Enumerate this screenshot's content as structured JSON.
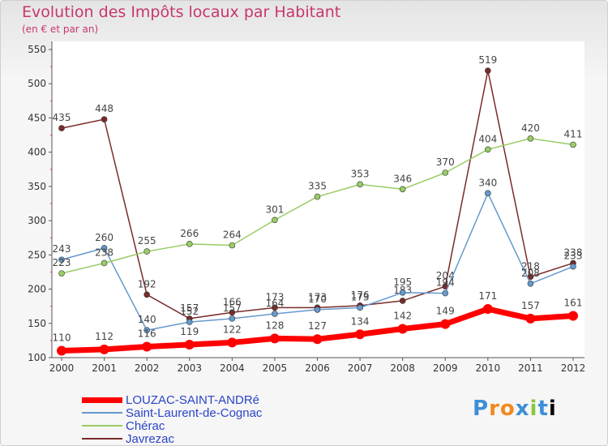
{
  "title": "Evolution des Impôts locaux par Habitant",
  "subtitle": "(en € et par an)",
  "logo_text": "Proxiti",
  "chart_data": {
    "type": "line",
    "x": [
      2000,
      2001,
      2002,
      2003,
      2004,
      2005,
      2006,
      2007,
      2008,
      2009,
      2010,
      2011,
      2012
    ],
    "ylim": [
      100,
      550
    ],
    "yticks": [
      100,
      150,
      200,
      250,
      300,
      350,
      400,
      450,
      500,
      550
    ],
    "grid": false,
    "legend_position": "bottom-left",
    "series": [
      {
        "name": "LOUZAC-SAINT-ANDRé",
        "color": "#ff0000",
        "values": [
          110,
          112,
          116,
          119,
          122,
          128,
          127,
          134,
          142,
          149,
          171,
          157,
          161
        ],
        "labels": [
          "110",
          "112",
          "116",
          "119",
          "122",
          "128",
          "127",
          "134",
          "142",
          "149",
          "171",
          "157",
          "161"
        ]
      },
      {
        "name": "Saint-Laurent-de-Cognac",
        "color": "#6699cc",
        "values": [
          243,
          260,
          140,
          152,
          157,
          164,
          170,
          173,
          195,
          194,
          340,
          208,
          233
        ],
        "labels": [
          "243",
          "260",
          "140",
          "152",
          "157",
          "164",
          "170",
          "173",
          "195",
          "194",
          "340",
          "208",
          "233"
        ]
      },
      {
        "name": "Chérac",
        "color": "#99cc66",
        "values": [
          223,
          238,
          255,
          266,
          264,
          301,
          335,
          353,
          346,
          370,
          404,
          420,
          411
        ],
        "labels": [
          "223",
          "238",
          "255",
          "266",
          "264",
          "301",
          "335",
          "353",
          "346",
          "370",
          "404",
          "420",
          "411"
        ]
      },
      {
        "name": "Javrezac",
        "color": "#7a2b2b",
        "values": [
          435,
          448,
          192,
          157,
          166,
          173,
          173,
          176,
          183,
          204,
          519,
          218,
          238
        ],
        "labels": [
          "435",
          "448",
          "192",
          "157",
          "166",
          "173",
          "173",
          "176",
          "183",
          "204",
          "519",
          "218",
          "238"
        ]
      }
    ]
  }
}
